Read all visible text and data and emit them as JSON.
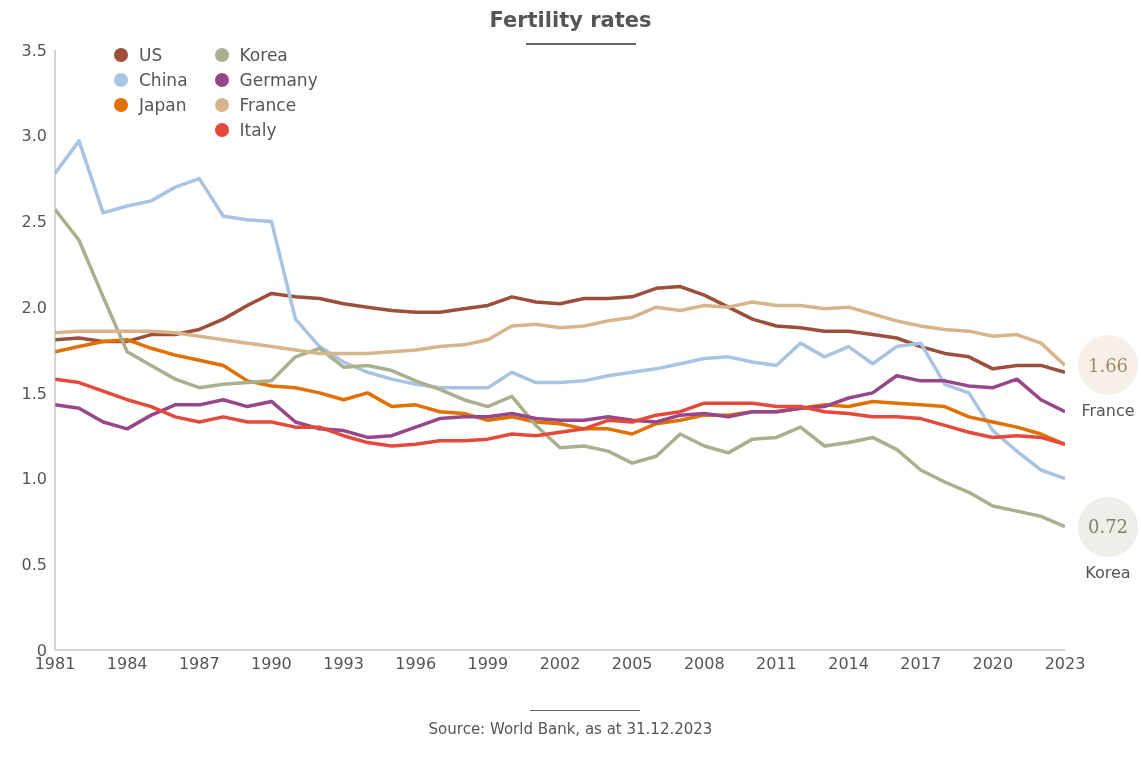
{
  "chart_data": {
    "type": "line",
    "title": "Fertility rates",
    "x": [
      1981,
      1982,
      1983,
      1984,
      1985,
      1986,
      1987,
      1988,
      1989,
      1990,
      1991,
      1992,
      1993,
      1994,
      1995,
      1996,
      1997,
      1998,
      1999,
      2000,
      2001,
      2002,
      2003,
      2004,
      2005,
      2006,
      2007,
      2008,
      2009,
      2010,
      2011,
      2012,
      2013,
      2014,
      2015,
      2016,
      2017,
      2018,
      2019,
      2020,
      2021,
      2022,
      2023
    ],
    "series": [
      {
        "name": "US",
        "color": "#9c4f3a",
        "values": [
          1.81,
          1.82,
          1.8,
          1.8,
          1.84,
          1.84,
          1.87,
          1.93,
          2.01,
          2.08,
          2.06,
          2.05,
          2.02,
          2.0,
          1.98,
          1.97,
          1.97,
          1.99,
          2.01,
          2.06,
          2.03,
          2.02,
          2.05,
          2.05,
          2.06,
          2.11,
          2.12,
          2.07,
          2.0,
          1.93,
          1.89,
          1.88,
          1.86,
          1.86,
          1.84,
          1.82,
          1.77,
          1.73,
          1.71,
          1.64,
          1.66,
          1.66,
          1.62
        ]
      },
      {
        "name": "China",
        "color": "#a9c3e3",
        "values": [
          2.78,
          2.97,
          2.55,
          2.59,
          2.62,
          2.7,
          2.75,
          2.53,
          2.51,
          2.5,
          1.93,
          1.77,
          1.68,
          1.62,
          1.58,
          1.55,
          1.53,
          1.53,
          1.53,
          1.62,
          1.56,
          1.56,
          1.57,
          1.6,
          1.62,
          1.64,
          1.67,
          1.7,
          1.71,
          1.68,
          1.66,
          1.79,
          1.71,
          1.77,
          1.67,
          1.77,
          1.79,
          1.55,
          1.5,
          1.28,
          1.16,
          1.05,
          1.0
        ]
      },
      {
        "name": "Japan",
        "color": "#e07000",
        "values": [
          1.74,
          1.77,
          1.8,
          1.81,
          1.76,
          1.72,
          1.69,
          1.66,
          1.57,
          1.54,
          1.53,
          1.5,
          1.46,
          1.5,
          1.42,
          1.43,
          1.39,
          1.38,
          1.34,
          1.36,
          1.33,
          1.32,
          1.29,
          1.29,
          1.26,
          1.32,
          1.34,
          1.37,
          1.37,
          1.39,
          1.39,
          1.41,
          1.43,
          1.42,
          1.45,
          1.44,
          1.43,
          1.42,
          1.36,
          1.33,
          1.3,
          1.26,
          1.2
        ]
      },
      {
        "name": "Korea",
        "color": "#a9b08e",
        "values": [
          2.57,
          2.39,
          2.06,
          1.74,
          1.66,
          1.58,
          1.53,
          1.55,
          1.56,
          1.57,
          1.71,
          1.76,
          1.65,
          1.66,
          1.63,
          1.57,
          1.52,
          1.46,
          1.42,
          1.48,
          1.31,
          1.18,
          1.19,
          1.16,
          1.09,
          1.13,
          1.26,
          1.19,
          1.15,
          1.23,
          1.24,
          1.3,
          1.19,
          1.21,
          1.24,
          1.17,
          1.05,
          0.98,
          0.92,
          0.84,
          0.81,
          0.78,
          0.72
        ]
      },
      {
        "name": "Germany",
        "color": "#98468a",
        "values": [
          1.43,
          1.41,
          1.33,
          1.29,
          1.37,
          1.43,
          1.43,
          1.46,
          1.42,
          1.45,
          1.33,
          1.29,
          1.28,
          1.24,
          1.25,
          1.3,
          1.35,
          1.36,
          1.36,
          1.38,
          1.35,
          1.34,
          1.34,
          1.36,
          1.34,
          1.33,
          1.37,
          1.38,
          1.36,
          1.39,
          1.39,
          1.41,
          1.42,
          1.47,
          1.5,
          1.6,
          1.57,
          1.57,
          1.54,
          1.53,
          1.58,
          1.46,
          1.39
        ]
      },
      {
        "name": "France",
        "color": "#d6b58a",
        "values": [
          1.85,
          1.86,
          1.86,
          1.86,
          1.86,
          1.85,
          1.83,
          1.81,
          1.79,
          1.77,
          1.75,
          1.73,
          1.73,
          1.73,
          1.74,
          1.75,
          1.77,
          1.78,
          1.81,
          1.89,
          1.9,
          1.88,
          1.89,
          1.92,
          1.94,
          2.0,
          1.98,
          2.01,
          2.0,
          2.03,
          2.01,
          2.01,
          1.99,
          2.0,
          1.96,
          1.92,
          1.89,
          1.87,
          1.86,
          1.83,
          1.84,
          1.79,
          1.66
        ]
      },
      {
        "name": "Italy",
        "color": "#e5493a",
        "values": [
          1.58,
          1.56,
          1.51,
          1.46,
          1.42,
          1.36,
          1.33,
          1.36,
          1.33,
          1.33,
          1.3,
          1.3,
          1.25,
          1.21,
          1.19,
          1.2,
          1.22,
          1.22,
          1.23,
          1.26,
          1.25,
          1.27,
          1.29,
          1.34,
          1.33,
          1.37,
          1.39,
          1.44,
          1.44,
          1.44,
          1.42,
          1.42,
          1.39,
          1.38,
          1.36,
          1.36,
          1.35,
          1.31,
          1.27,
          1.24,
          1.25,
          1.24,
          1.2
        ]
      }
    ],
    "xlim": [
      1981,
      2023
    ],
    "xticks": [
      1981,
      1984,
      1987,
      1990,
      1993,
      1996,
      1999,
      2002,
      2005,
      2008,
      2011,
      2014,
      2017,
      2020,
      2023
    ],
    "ylim": [
      0,
      3.5
    ],
    "yticks": [
      {
        "value": 0,
        "label": "0"
      },
      {
        "value": 0.5,
        "label": "0.5"
      },
      {
        "value": 1,
        "label": "1.0"
      },
      {
        "value": 1.5,
        "label": "1.5"
      },
      {
        "value": 2,
        "label": "2.0"
      },
      {
        "value": 2.5,
        "label": "2.5"
      },
      {
        "value": 3,
        "label": "3.0"
      },
      {
        "value": 3.5,
        "label": "3.5"
      }
    ],
    "grid": false,
    "legend": "top left",
    "marker": "none",
    "line_style": "solid",
    "annotations": [
      {
        "text": "1.66",
        "x": 2023,
        "y": 1.66
      },
      "France",
      {
        "text": "0.72",
        "x": 2023,
        "y": 0.72
      },
      "Korea",
      "Source: World Bank, as at 31.12.2023"
    ]
  }
}
